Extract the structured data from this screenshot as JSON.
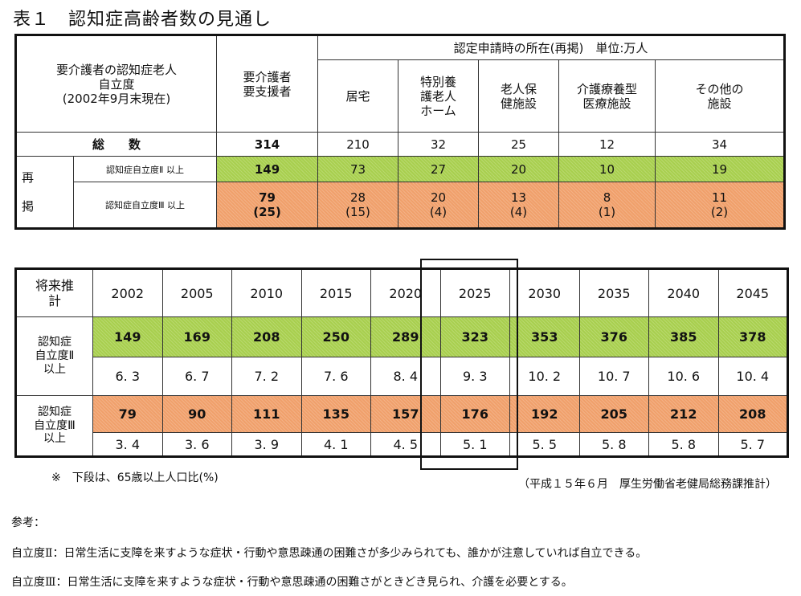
{
  "title": "表１　認知症高齢者数の見通し",
  "table1": {
    "header_left": "要介護者の認知症老人\n自立度\n(2002年9月末現在)",
    "header_total": "要介護者\n要支援者",
    "header_group": "認定申請時の所在(再掲)　単位:万人",
    "subheaders": [
      "居宅",
      "特別養\n護老人\nホーム",
      "老人保\n健施設",
      "介護療養型\n医療施設",
      "その他の\n施設"
    ],
    "total_label": "総　　数",
    "total_values": [
      "314",
      "210",
      "32",
      "25",
      "12",
      "34"
    ],
    "group_label": "再\n\n掲",
    "row2_label": "認知症自立度Ⅱ 以上",
    "row2_values": [
      "149",
      "73",
      "27",
      "20",
      "10",
      "19"
    ],
    "row3_label": "認知症自立度Ⅲ 以上",
    "row3_values": [
      "79\n(25)",
      "28\n(15)",
      "20\n(4)",
      "13\n(4)",
      "8\n(1)",
      "11\n(2)"
    ]
  },
  "table2": {
    "header_label": "将来推\n計",
    "years": [
      "2002",
      "2005",
      "2010",
      "2015",
      "2020",
      "2025",
      "2030",
      "2035",
      "2040",
      "2045"
    ],
    "row2_label": "認知症\n自立度Ⅱ\n以上",
    "row2_values": [
      "149",
      "169",
      "208",
      "250",
      "289",
      "323",
      "353",
      "376",
      "385",
      "378"
    ],
    "row2_ratio": [
      "6. 3",
      "6. 7",
      "7. 2",
      "7. 6",
      "8. 4",
      "9. 3",
      "10. 2",
      "10. 7",
      "10. 6",
      "10. 4"
    ],
    "row3_label": "認知症\n自立度Ⅲ\n以上",
    "row3_values": [
      "79",
      "90",
      "111",
      "135",
      "157",
      "176",
      "192",
      "205",
      "212",
      "208"
    ],
    "row3_ratio": [
      "3. 4",
      "3. 6",
      "3. 9",
      "4. 1",
      "4. 5",
      "5. 1",
      "5. 5",
      "5. 8",
      "5. 8",
      "5. 7"
    ]
  },
  "note_left": "※　下段は、65歳以上人口比(%)",
  "note_right": "（平成１５年６月　厚生労働省老健局総務課推計）",
  "reference": {
    "heading": "参考：",
    "line1": "自立度Ⅱ：日常生活に支障を来すような症状・行動や意思疎通の困難さが多少みられても、誰かが注意していれば自立できる。",
    "line2": "自立度Ⅲ：日常生活に支障を来すような症状・行動や意思疎通の困難さがときどき見られ、介護を必要とする。"
  },
  "colors": {
    "green": "#a8cf4e",
    "orange": "#f0a06b"
  }
}
